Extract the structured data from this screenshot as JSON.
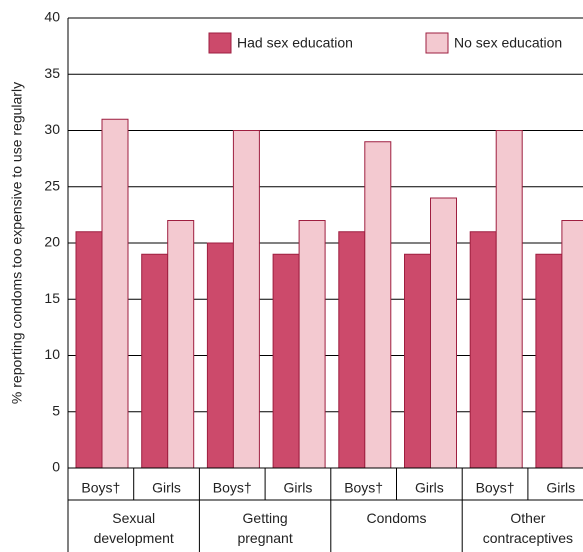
{
  "chart_data": {
    "type": "bar",
    "y_label": "% reporting condoms too expensive to use regularly",
    "categories": [
      "Boys†",
      "Girls",
      "Boys†",
      "Girls",
      "Boys†",
      "Girls",
      "Boys†",
      "Girls"
    ],
    "groups": [
      "Sexual\ndevelopment",
      "Getting\npregnant",
      "Condoms",
      "Other\ncontraceptives"
    ],
    "series": [
      {
        "name": "Had sex education",
        "color": "#cc4a6b",
        "values": [
          21,
          19,
          20,
          19,
          21,
          19,
          21,
          19
        ]
      },
      {
        "name": "No sex education",
        "color": "#f3c9d0",
        "values": [
          31,
          22,
          30,
          22,
          29,
          24,
          30,
          22
        ]
      }
    ],
    "ylim": [
      0,
      40
    ],
    "yticks": [
      0,
      5,
      10,
      15,
      20,
      25,
      30,
      35,
      40
    ],
    "grid": true
  }
}
